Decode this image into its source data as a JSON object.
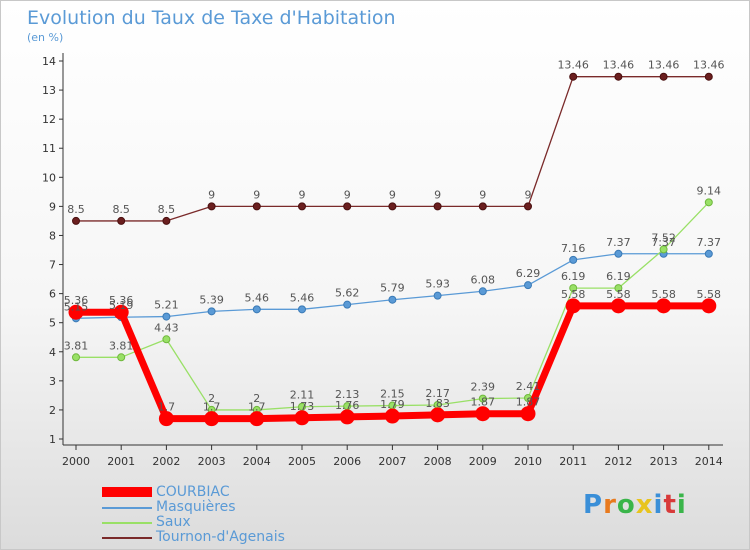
{
  "chart_data": {
    "type": "line",
    "title": "Evolution du Taux de Taxe d'Habitation",
    "unit_label": "(en %)",
    "xlabel": "",
    "ylabel": "",
    "ylim": [
      1,
      14
    ],
    "yticks": [
      1,
      2,
      3,
      4,
      5,
      6,
      7,
      8,
      9,
      10,
      11,
      12,
      13,
      14
    ],
    "categories": [
      "2000",
      "2001",
      "2002",
      "2003",
      "2004",
      "2005",
      "2006",
      "2007",
      "2008",
      "2009",
      "2010",
      "2011",
      "2012",
      "2013",
      "2014"
    ],
    "series": [
      {
        "name": "COURBIAC",
        "color": "#ff0000",
        "values": [
          5.36,
          5.36,
          1.7,
          1.7,
          1.7,
          1.73,
          1.76,
          1.79,
          1.83,
          1.87,
          1.87,
          5.58,
          5.58,
          5.58,
          5.58
        ],
        "labels": [
          "5.36",
          "5.36",
          "1.7",
          "1.7",
          "1.7",
          "1.73",
          "1.76",
          "1.79",
          "1.83",
          "1.87",
          "1.87",
          "5.58",
          "5.58",
          "5.58",
          "5.58"
        ]
      },
      {
        "name": "Masquières",
        "color": "#5a9ad6",
        "values": [
          5.15,
          5.19,
          5.21,
          5.39,
          5.46,
          5.46,
          5.62,
          5.79,
          5.93,
          6.08,
          6.29,
          7.16,
          7.37,
          7.37,
          7.37
        ],
        "labels": [
          "5.15",
          "5.19",
          "5.21",
          "5.39",
          "5.46",
          "5.46",
          "5.62",
          "5.79",
          "5.93",
          "6.08",
          "6.29",
          "7.16",
          "7.37",
          "7.37",
          "7.37"
        ]
      },
      {
        "name": "Saux",
        "color": "#99e066",
        "values": [
          3.81,
          3.81,
          4.43,
          2,
          2,
          2.11,
          2.13,
          2.15,
          2.17,
          2.39,
          2.41,
          6.19,
          6.19,
          7.52,
          9.14
        ],
        "labels": [
          "3.81",
          "3.81",
          "4.43",
          "2",
          "2",
          "2.11",
          "2.13",
          "2.15",
          "2.17",
          "2.39",
          "2.41",
          "6.19",
          "6.19",
          "7.52",
          "9.14"
        ]
      },
      {
        "name": "Tournon-d'Agenais",
        "color": "#7a2a2a",
        "values": [
          8.5,
          8.5,
          8.5,
          9,
          9,
          9,
          9,
          9,
          9,
          9,
          9,
          13.46,
          13.46,
          13.46,
          13.46
        ],
        "labels": [
          "8.5",
          "8.5",
          "8.5",
          "9",
          "9",
          "9",
          "9",
          "9",
          "9",
          "9",
          "9",
          "13.46",
          "13.46",
          "13.46",
          "13.46"
        ]
      }
    ],
    "legend_position": "bottom-left"
  },
  "logo": {
    "letters": [
      "P",
      "r",
      "o",
      "x",
      "i",
      "t",
      "i"
    ],
    "colors": [
      "#3a8fd8",
      "#e87a1e",
      "#3ab54a",
      "#e8c41e",
      "#3a8fd8",
      "#d83a3a",
      "#3ab54a"
    ]
  }
}
